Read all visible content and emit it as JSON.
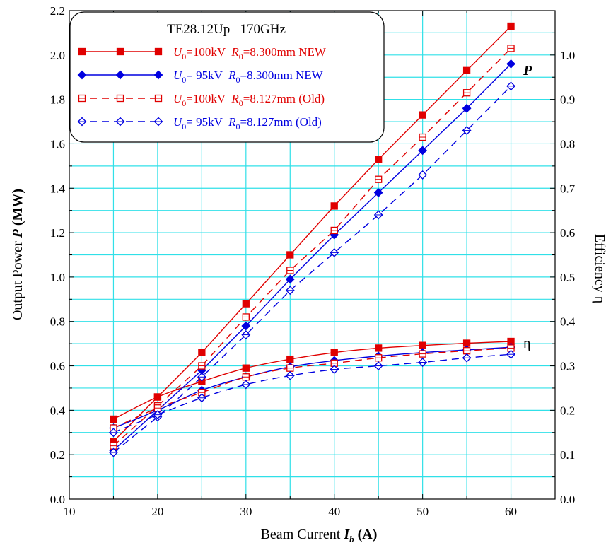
{
  "chart_data": {
    "type": "line",
    "title": "TE28.12Up   170GHz",
    "xlabel": {
      "prefix": "Beam Current ",
      "symbol": "I",
      "sub": "b",
      "unit": " (A)"
    },
    "ylabel": {
      "prefix": "Output Power ",
      "symbol": "P",
      "unit": " (MW)"
    },
    "y2label": "Efficiency  η",
    "xlim": [
      10,
      65
    ],
    "ylim": [
      0,
      2.2
    ],
    "y2lim": [
      0,
      1.1
    ],
    "xticks": [
      "10",
      "20",
      "30",
      "40",
      "50",
      "60"
    ],
    "yticks": [
      "0.0",
      "0.2",
      "0.4",
      "0.6",
      "0.8",
      "1.0",
      "1.2",
      "1.4",
      "1.6",
      "1.8",
      "2.0",
      "2.2"
    ],
    "y2ticks": [
      "0.0",
      "0.1",
      "0.2",
      "0.3",
      "0.4",
      "0.5",
      "0.6",
      "0.7",
      "0.8",
      "0.9",
      "1.0"
    ],
    "grid": true,
    "legend_position": "top-left",
    "curve_labels": {
      "power": "P",
      "efficiency": "η"
    },
    "x": [
      15,
      20,
      25,
      30,
      35,
      40,
      45,
      50,
      55,
      60
    ],
    "series": [
      {
        "legend": {
          "u_value": "=100kV",
          "r_value": "=8.300mm NEW"
        },
        "color": "#e00000",
        "marker": "square-filled",
        "dash": false,
        "power": [
          0.26,
          0.46,
          0.66,
          0.88,
          1.1,
          1.32,
          1.53,
          1.73,
          1.93,
          2.13
        ],
        "efficiency": [
          0.18,
          0.23,
          0.265,
          0.295,
          0.315,
          0.33,
          0.34,
          0.346,
          0.351,
          0.355
        ]
      },
      {
        "legend": {
          "u_value": "= 95kV",
          "r_value": "=8.300mm NEW"
        },
        "color": "#0000e0",
        "marker": "diamond-filled",
        "dash": false,
        "power": [
          0.22,
          0.4,
          0.58,
          0.78,
          0.99,
          1.19,
          1.38,
          1.57,
          1.76,
          1.96
        ],
        "efficiency": [
          0.16,
          0.2,
          0.245,
          0.275,
          0.298,
          0.312,
          0.322,
          0.33,
          0.336,
          0.342
        ]
      },
      {
        "legend": {
          "u_value": "=100kV",
          "r_value": "=8.127mm (Old)"
        },
        "color": "#e00000",
        "marker": "square-open",
        "dash": true,
        "power": [
          0.24,
          0.42,
          0.6,
          0.82,
          1.03,
          1.21,
          1.44,
          1.63,
          1.83,
          2.03
        ],
        "efficiency": [
          0.16,
          0.205,
          0.24,
          0.275,
          0.295,
          0.306,
          0.318,
          0.327,
          0.334,
          0.34
        ]
      },
      {
        "legend": {
          "u_value": "= 95kV",
          "r_value": "=8.127mm (Old)"
        },
        "color": "#0000e0",
        "marker": "diamond-open",
        "dash": true,
        "power": [
          0.21,
          0.37,
          0.55,
          0.74,
          0.94,
          1.11,
          1.28,
          1.46,
          1.66,
          1.86
        ],
        "efficiency": [
          0.15,
          0.19,
          0.228,
          0.258,
          0.278,
          0.292,
          0.3,
          0.308,
          0.318,
          0.326
        ]
      }
    ]
  }
}
